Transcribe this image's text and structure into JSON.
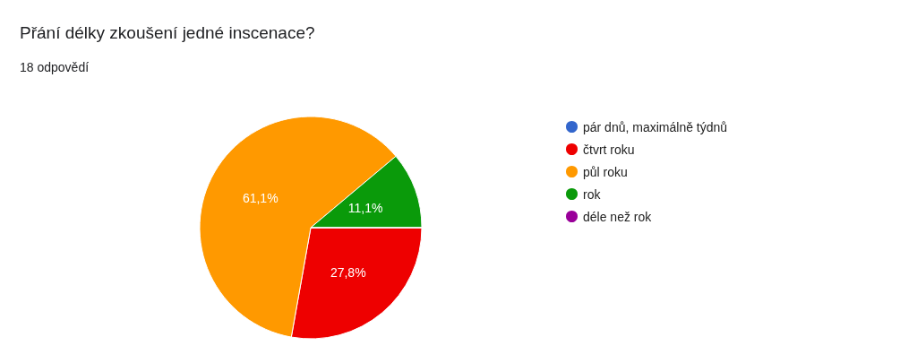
{
  "chart_data": {
    "type": "pie",
    "title": "Přání délky zkoušení jedné inscenace?",
    "subtitle": "18 odpovědí",
    "categories": [
      "pár dnů, maximálně týdnů",
      "čtvrt roku",
      "půl roku",
      "rok",
      "déle než rok"
    ],
    "values": [
      0,
      27.8,
      61.1,
      11.1,
      0
    ],
    "colors": [
      "#3366cc",
      "#ee0000",
      "#ff9900",
      "#0a9a0a",
      "#990099"
    ],
    "value_labels": [
      null,
      "27,8%",
      "61,1%",
      "11,1%",
      null
    ],
    "legend": "right"
  }
}
